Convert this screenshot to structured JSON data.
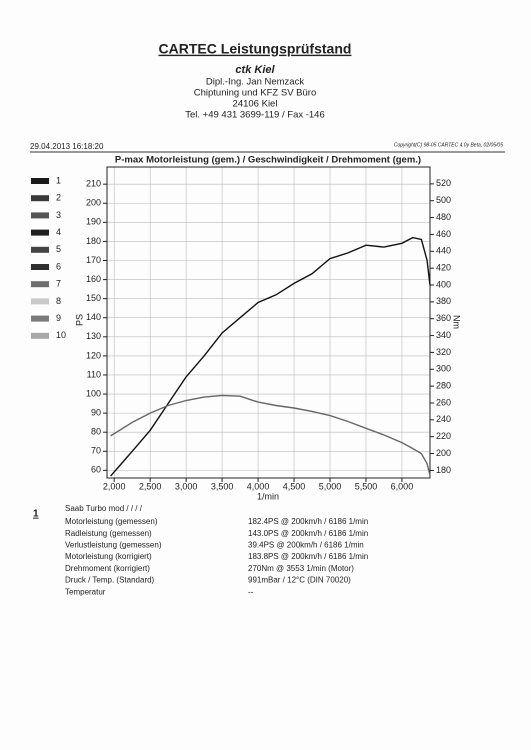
{
  "header": {
    "title": "CARTEC Leistungsprüfstand",
    "company": "ctk Kiel",
    "lines": [
      "Dipl.-Ing. Jan Nemzack",
      "Chiptuning und KFZ SV Büro",
      "24106 Kiel",
      "Tel. +49 431 3699-119 / Fax -146"
    ]
  },
  "date": "29.04.2013 16:18:20",
  "copyright": "Copyright(C) 98-05 CARTEC 4.0y Beta, 02/05/05",
  "legend": [
    {
      "name": "1",
      "color": "#1a1a1a"
    },
    {
      "name": "2",
      "color": "#3a3a3a"
    },
    {
      "name": "3",
      "color": "#555555"
    },
    {
      "name": "4",
      "color": "#202020"
    },
    {
      "name": "5",
      "color": "#444444"
    },
    {
      "name": "6",
      "color": "#2e2e2e"
    },
    {
      "name": "7",
      "color": "#6e6e6e"
    },
    {
      "name": "8",
      "color": "#c8c8c8"
    },
    {
      "name": "9",
      "color": "#7a7a7a"
    },
    {
      "name": "10",
      "color": "#a8a8a8"
    }
  ],
  "chart_data": {
    "type": "line",
    "title": "P-max Motorleistung (gem.) / Geschwindigkeit / Drehmoment (gem.)",
    "x_label": "1/min",
    "y_label": "PS",
    "y2_label": "Nm",
    "x": [
      1950,
      2250,
      2500,
      2750,
      3000,
      3250,
      3500,
      3750,
      4000,
      4250,
      4500,
      4750,
      5000,
      5250,
      5500,
      5750,
      6000,
      6150,
      6270,
      6350,
      6390
    ],
    "series": [
      {
        "color": "#111111",
        "values": [
          57,
          70,
          81,
          95,
          109,
          120,
          132,
          140,
          148,
          152,
          158,
          163,
          171,
          174,
          178,
          177,
          179,
          182,
          181,
          170,
          157
        ]
      },
      {
        "color": "#666666",
        "axis": "y2",
        "values": [
          221,
          237,
          248,
          257,
          263,
          267,
          269,
          268,
          261,
          257,
          254,
          250,
          245,
          238,
          230,
          222,
          213,
          206,
          200,
          188,
          174
        ]
      }
    ],
    "xlim": [
      1900,
      6390
    ],
    "ylim": [
      56,
      219
    ],
    "y2lim": [
      171,
      540
    ],
    "xticks": [
      {
        "value": 2000,
        "label": "2,000"
      },
      {
        "value": 2500,
        "label": "2,500"
      },
      {
        "value": 3000,
        "label": "3,000"
      },
      {
        "value": 3500,
        "label": "3,500"
      },
      {
        "value": 4000,
        "label": "4,000"
      },
      {
        "value": 4500,
        "label": "4,500"
      },
      {
        "value": 5000,
        "label": "5,000"
      },
      {
        "value": 5500,
        "label": "5,500"
      },
      {
        "value": 6000,
        "label": "6,000"
      }
    ],
    "yticks": [
      60,
      70,
      80,
      90,
      100,
      110,
      120,
      130,
      140,
      150,
      160,
      170,
      180,
      190,
      200,
      210
    ],
    "y2ticks": [
      180,
      200,
      220,
      240,
      260,
      280,
      300,
      320,
      340,
      360,
      380,
      400,
      420,
      440,
      460,
      480,
      500,
      520
    ],
    "grid": true
  },
  "results": {
    "number": "1",
    "vehicle": "Saab Turbo mod / / / /",
    "rows": [
      [
        "Motorleistung (gemessen)",
        "182.4PS @ 200km/h / 6186 1/min"
      ],
      [
        "Radleistung (gemessen)",
        "143.0PS @ 200km/h / 6186 1/min"
      ],
      [
        "Verlustleistung (gemessen)",
        "39.4PS @ 200km/h / 6186 1/min"
      ],
      [
        "Motorleistung (korrigiert)",
        "183.8PS @ 200km/h / 6186 1/min"
      ],
      [
        "Drehmoment (korrigiert)",
        "270Nm @ 3553 1/min (Motor)"
      ],
      [
        "Druck / Temp. (Standard)",
        "991mBar / 12°C (DIN 70020)"
      ],
      [
        "Temperatur",
        "--"
      ]
    ]
  }
}
